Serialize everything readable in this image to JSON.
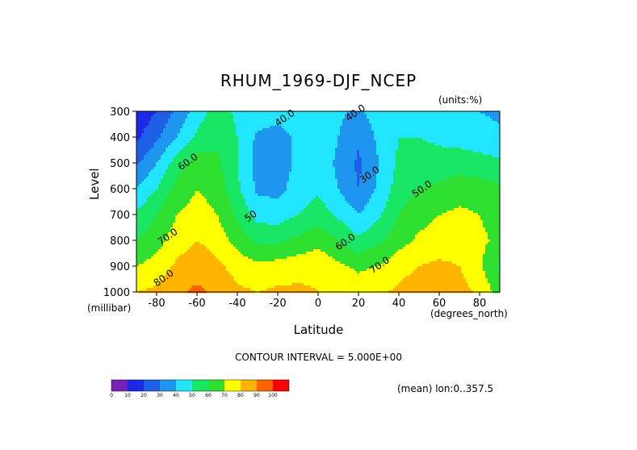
{
  "figure": {
    "title": "RHUM_1969-DJF_NCEP",
    "units": "(units:%)",
    "contour_interval": "CONTOUR INTERVAL = 5.000E+00",
    "mean_note": "(mean) lon:0..357.5"
  },
  "chart_data": {
    "type": "heatmap",
    "title": "RHUM_1969-DJF_NCEP",
    "xlabel": "Latitude",
    "ylabel": "Level",
    "x_unit": "(degrees_north)",
    "y_unit": "(millibar)",
    "xlim": [
      -90,
      90
    ],
    "ylim": [
      1000,
      300
    ],
    "x_ticks": [
      -80,
      -60,
      -40,
      -20,
      0,
      20,
      40,
      60,
      80
    ],
    "y_ticks": [
      1000,
      900,
      800,
      700,
      600,
      500,
      400,
      300
    ],
    "x_values": [
      -90,
      -80,
      -70,
      -60,
      -50,
      -40,
      -30,
      -20,
      -10,
      0,
      10,
      20,
      30,
      40,
      50,
      60,
      70,
      80,
      90
    ],
    "levels": [
      300,
      400,
      500,
      600,
      700,
      800,
      900,
      1000
    ],
    "values": [
      [
        12,
        20,
        32,
        45,
        55,
        48,
        46,
        44,
        45,
        48,
        42,
        38,
        45,
        50,
        48,
        44,
        42,
        40,
        38
      ],
      [
        18,
        28,
        40,
        52,
        58,
        50,
        38,
        36,
        42,
        48,
        40,
        32,
        42,
        50,
        50,
        48,
        46,
        44,
        42
      ],
      [
        28,
        40,
        55,
        65,
        62,
        50,
        36,
        35,
        42,
        46,
        38,
        28,
        40,
        52,
        54,
        54,
        55,
        54,
        52
      ],
      [
        40,
        50,
        64,
        70,
        66,
        52,
        38,
        37,
        44,
        48,
        40,
        30,
        42,
        55,
        60,
        62,
        66,
        64,
        62
      ],
      [
        52,
        60,
        70,
        74,
        70,
        58,
        46,
        45,
        50,
        55,
        48,
        40,
        48,
        60,
        66,
        70,
        72,
        70,
        65
      ],
      [
        60,
        66,
        75,
        80,
        76,
        66,
        58,
        58,
        62,
        66,
        60,
        52,
        58,
        66,
        72,
        74,
        75,
        72,
        68
      ],
      [
        70,
        74,
        82,
        86,
        82,
        76,
        72,
        74,
        76,
        78,
        72,
        68,
        70,
        76,
        80,
        82,
        80,
        72,
        58
      ],
      [
        80,
        82,
        88,
        92,
        88,
        82,
        80,
        82,
        82,
        80,
        78,
        76,
        78,
        82,
        86,
        86,
        84,
        78,
        65
      ]
    ],
    "contour_labels": [
      "40.0",
      "40.0",
      "60.0",
      "30.0",
      "50.0",
      "50",
      "60.0",
      "70.0",
      "70.0",
      "80.0"
    ],
    "colorbar": {
      "ticks": [
        "0",
        "10",
        "20",
        "30",
        "40",
        "50",
        "60",
        "70",
        "80",
        "90",
        "100"
      ],
      "colors": [
        "#7a1fb4",
        "#1e28e6",
        "#1e5fe6",
        "#1e96f0",
        "#22e6ff",
        "#18e664",
        "#30e030",
        "#ffff00",
        "#ffb400",
        "#ff6400",
        "#ff0000"
      ]
    }
  }
}
